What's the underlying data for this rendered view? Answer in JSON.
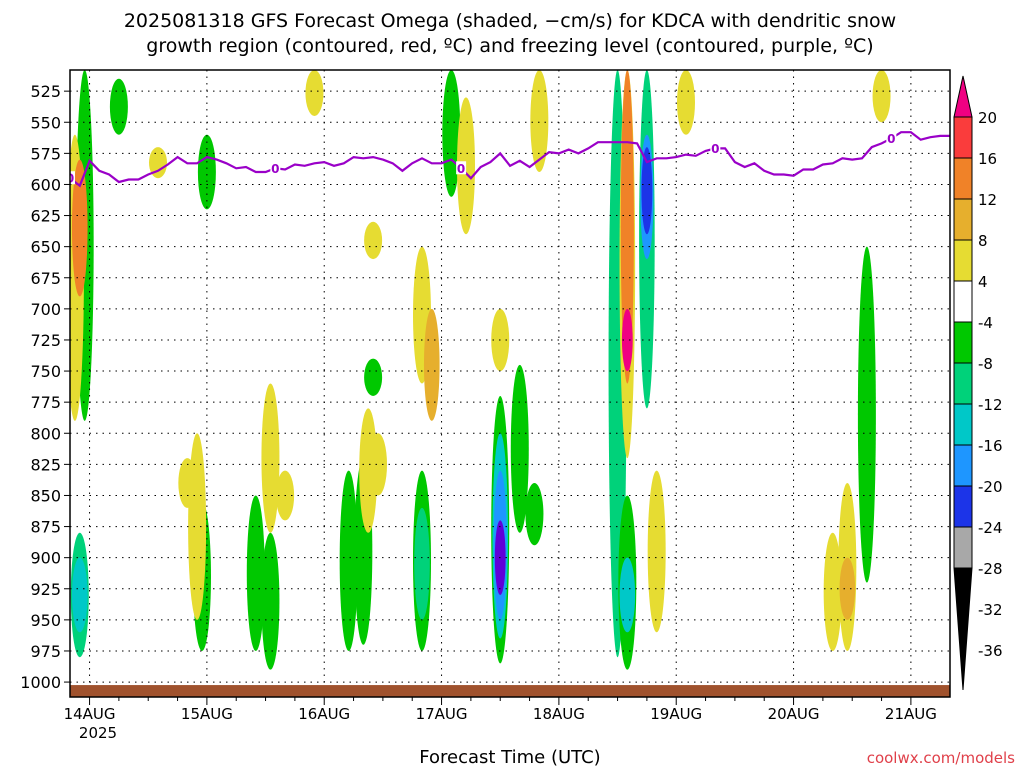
{
  "title": {
    "line1": "2025081318 GFS Forecast Omega (shaded, −cm/s) for KDCA with dendritic snow",
    "line2": "growth region (contoured, red, ºC) and freezing level (contoured, purple, ºC)"
  },
  "credit": "coolwx.com/models",
  "chart_data": {
    "type": "heatmap",
    "title": "2025081318 GFS Forecast Omega (shaded, −cm/s) for KDCA with dendritic snow growth region (contoured, red, ºC) and freezing level (contoured, purple, ºC)",
    "xlabel": "Forecast Time (UTC)",
    "ylabel": "",
    "x_ticks": [
      "14AUG",
      "15AUG",
      "16AUG",
      "17AUG",
      "18AUG",
      "19AUG",
      "20AUG",
      "21AUG"
    ],
    "x_year_label": "2025",
    "xlim_hours": [
      -4,
      176
    ],
    "y_ticks": [
      525,
      550,
      575,
      600,
      625,
      650,
      675,
      700,
      725,
      750,
      775,
      800,
      825,
      850,
      875,
      900,
      925,
      950,
      975,
      1000
    ],
    "ylim_hPa": [
      508,
      1012
    ],
    "grid": true,
    "colorbar": {
      "levels": [
        -36,
        -32,
        -28,
        -24,
        -20,
        -16,
        -12,
        -8,
        -4,
        4,
        8,
        12,
        16,
        20
      ],
      "colors": [
        "#000000",
        "#a8a8a8",
        "#a000c8",
        "#6000d8",
        "#1c34e8",
        "#1e96ff",
        "#00c8c8",
        "#00d27a",
        "#00c800",
        "#ffffff",
        "#e6dc32",
        "#e6af2d",
        "#f08228",
        "#fa3c3c",
        "#f00082"
      ],
      "labels": [
        "-36",
        "-32",
        "-28",
        "-24",
        "-20",
        "-16",
        "-12",
        "-8",
        "-4",
        "4",
        "8",
        "12",
        "16",
        "20"
      ]
    },
    "freezing_level": {
      "label": "0",
      "hours": [
        -4,
        -2,
        0,
        2,
        4,
        6,
        8,
        10,
        12,
        14,
        16,
        18,
        20,
        22,
        24,
        26,
        28,
        30,
        32,
        34,
        36,
        38,
        40,
        42,
        44,
        46,
        48,
        50,
        52,
        54,
        56,
        58,
        60,
        62,
        64,
        66,
        68,
        70,
        72,
        74,
        76,
        78,
        80,
        82,
        84,
        86,
        88,
        90,
        92,
        94,
        96,
        98,
        100,
        102,
        104,
        106,
        108,
        110,
        112,
        114,
        116,
        118,
        120,
        122,
        124,
        126,
        128,
        130,
        132,
        134,
        136,
        138,
        140,
        142,
        144,
        146,
        148,
        150,
        152,
        154,
        156,
        158,
        160,
        162,
        164,
        166,
        168,
        170,
        172,
        174,
        176
      ],
      "pressure_hPa": [
        595,
        601,
        581,
        589,
        592,
        598,
        596,
        596,
        592,
        589,
        584,
        578,
        583,
        583,
        578,
        580,
        583,
        587,
        586,
        590,
        590,
        587,
        588,
        584,
        585,
        583,
        582,
        585,
        583,
        578,
        579,
        578,
        580,
        583,
        589,
        583,
        579,
        583,
        583,
        580,
        587,
        595,
        586,
        582,
        575,
        585,
        581,
        586,
        580,
        574,
        575,
        572,
        575,
        571,
        566,
        566,
        566,
        566,
        567,
        582,
        579,
        579,
        578,
        576,
        577,
        573,
        571,
        571,
        582,
        586,
        583,
        589,
        592,
        592,
        593,
        588,
        588,
        584,
        583,
        579,
        580,
        579,
        570,
        567,
        563,
        558,
        558,
        564,
        562,
        561,
        561
      ]
    },
    "shaded_features": [
      {
        "hour": -1,
        "p_top": 508,
        "p_bottom": 790,
        "value": -6,
        "rank": 1
      },
      {
        "hour": -3,
        "p_top": 560,
        "p_bottom": 790,
        "value": 6,
        "rank": 1
      },
      {
        "hour": -2,
        "p_top": 580,
        "p_bottom": 690,
        "value": 12,
        "rank": 2
      },
      {
        "hour": -2,
        "p_top": 880,
        "p_bottom": 980,
        "value": -9,
        "rank": 1
      },
      {
        "hour": -2,
        "p_top": 900,
        "p_bottom": 960,
        "value": -14,
        "rank": 2
      },
      {
        "hour": 6,
        "p_top": 515,
        "p_bottom": 560,
        "value": -6,
        "rank": 1
      },
      {
        "hour": 14,
        "p_top": 570,
        "p_bottom": 595,
        "value": 6,
        "rank": 1
      },
      {
        "hour": 20,
        "p_top": 820,
        "p_bottom": 860,
        "value": 6,
        "rank": 1
      },
      {
        "hour": 23,
        "p_top": 855,
        "p_bottom": 975,
        "value": -6,
        "rank": 1
      },
      {
        "hour": 24,
        "p_top": 560,
        "p_bottom": 620,
        "value": -6,
        "rank": 1
      },
      {
        "hour": 22,
        "p_top": 800,
        "p_bottom": 950,
        "value": 6,
        "rank": 1
      },
      {
        "hour": 37,
        "p_top": 760,
        "p_bottom": 880,
        "value": 6,
        "rank": 1
      },
      {
        "hour": 34,
        "p_top": 850,
        "p_bottom": 975,
        "value": -6,
        "rank": 1
      },
      {
        "hour": 37,
        "p_top": 880,
        "p_bottom": 990,
        "value": -6,
        "rank": 1
      },
      {
        "hour": 40,
        "p_top": 830,
        "p_bottom": 870,
        "value": 6,
        "rank": 1
      },
      {
        "hour": 46,
        "p_top": 508,
        "p_bottom": 545,
        "value": 6,
        "rank": 1
      },
      {
        "hour": 53,
        "p_top": 830,
        "p_bottom": 975,
        "value": -7,
        "rank": 1
      },
      {
        "hour": 56,
        "p_top": 820,
        "p_bottom": 970,
        "value": -8,
        "rank": 1
      },
      {
        "hour": 57,
        "p_top": 780,
        "p_bottom": 880,
        "value": 6,
        "rank": 1
      },
      {
        "hour": 58,
        "p_top": 630,
        "p_bottom": 660,
        "value": 6,
        "rank": 1
      },
      {
        "hour": 58,
        "p_top": 740,
        "p_bottom": 770,
        "value": -6,
        "rank": 1
      },
      {
        "hour": 59,
        "p_top": 800,
        "p_bottom": 850,
        "value": 6,
        "rank": 1
      },
      {
        "hour": 68,
        "p_top": 650,
        "p_bottom": 760,
        "value": 6,
        "rank": 1
      },
      {
        "hour": 70,
        "p_top": 700,
        "p_bottom": 790,
        "value": 9,
        "rank": 2
      },
      {
        "hour": 68,
        "p_top": 830,
        "p_bottom": 975,
        "value": -8,
        "rank": 1
      },
      {
        "hour": 68,
        "p_top": 860,
        "p_bottom": 950,
        "value": -12,
        "rank": 2
      },
      {
        "hour": 74,
        "p_top": 508,
        "p_bottom": 610,
        "value": -6,
        "rank": 1
      },
      {
        "hour": 77,
        "p_top": 530,
        "p_bottom": 640,
        "value": 6,
        "rank": 1
      },
      {
        "hour": 84,
        "p_top": 770,
        "p_bottom": 985,
        "value": -8,
        "rank": 1
      },
      {
        "hour": 84,
        "p_top": 800,
        "p_bottom": 965,
        "value": -13,
        "rank": 2
      },
      {
        "hour": 84,
        "p_top": 830,
        "p_bottom": 950,
        "value": -20,
        "rank": 3
      },
      {
        "hour": 84,
        "p_top": 870,
        "p_bottom": 930,
        "value": -26,
        "rank": 4
      },
      {
        "hour": 88,
        "p_top": 745,
        "p_bottom": 880,
        "value": -8,
        "rank": 1
      },
      {
        "hour": 91,
        "p_top": 840,
        "p_bottom": 890,
        "value": -6,
        "rank": 1
      },
      {
        "hour": 84,
        "p_top": 700,
        "p_bottom": 750,
        "value": 6,
        "rank": 1
      },
      {
        "hour": 92,
        "p_top": 508,
        "p_bottom": 590,
        "value": 6,
        "rank": 1
      },
      {
        "hour": 108,
        "p_top": 508,
        "p_bottom": 980,
        "value": -12,
        "rank": 1
      },
      {
        "hour": 110,
        "p_top": 508,
        "p_bottom": 820,
        "value": 6,
        "rank": 2
      },
      {
        "hour": 110,
        "p_top": 508,
        "p_bottom": 760,
        "value": 14,
        "rank": 3
      },
      {
        "hour": 110,
        "p_top": 700,
        "p_bottom": 750,
        "value": 20,
        "rank": 4
      },
      {
        "hour": 114,
        "p_top": 508,
        "p_bottom": 780,
        "value": -10,
        "rank": 2
      },
      {
        "hour": 114,
        "p_top": 560,
        "p_bottom": 660,
        "value": -18,
        "rank": 3
      },
      {
        "hour": 114,
        "p_top": 570,
        "p_bottom": 640,
        "value": -22,
        "rank": 4
      },
      {
        "hour": 110,
        "p_top": 850,
        "p_bottom": 990,
        "value": -8,
        "rank": 1
      },
      {
        "hour": 110,
        "p_top": 900,
        "p_bottom": 960,
        "value": -16,
        "rank": 2
      },
      {
        "hour": 116,
        "p_top": 830,
        "p_bottom": 960,
        "value": 6,
        "rank": 1
      },
      {
        "hour": 122,
        "p_top": 508,
        "p_bottom": 560,
        "value": 6,
        "rank": 1
      },
      {
        "hour": 152,
        "p_top": 880,
        "p_bottom": 975,
        "value": 7,
        "rank": 1
      },
      {
        "hour": 155,
        "p_top": 840,
        "p_bottom": 975,
        "value": 6,
        "rank": 1
      },
      {
        "hour": 155,
        "p_top": 900,
        "p_bottom": 950,
        "value": 10,
        "rank": 2
      },
      {
        "hour": 159,
        "p_top": 650,
        "p_bottom": 920,
        "value": -8,
        "rank": 1
      },
      {
        "hour": 162,
        "p_top": 508,
        "p_bottom": 550,
        "value": 6,
        "rank": 1
      }
    ]
  }
}
